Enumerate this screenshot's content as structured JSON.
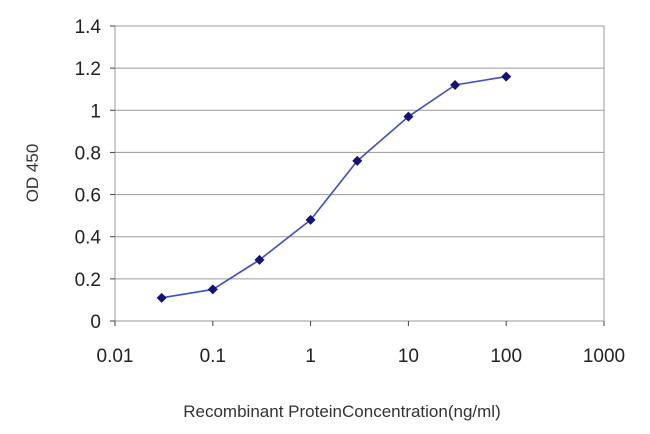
{
  "chart_data": {
    "type": "line",
    "xscale": "log",
    "xlabel": "Recombinant ProteinConcentration(ng/ml)",
    "ylabel": "OD 450",
    "xlim": [
      0.01,
      1000
    ],
    "ylim": [
      0,
      1.4
    ],
    "x_ticks": [
      "0.01",
      "0.1",
      "1",
      "10",
      "100",
      "1000"
    ],
    "y_ticks": [
      "0",
      "0.2",
      "0.4",
      "0.6",
      "0.8",
      "1",
      "1.2",
      "1.4"
    ],
    "grid": true,
    "legend": "none",
    "series": [
      {
        "color": "#3b4fc8",
        "marker_color": "#13137a",
        "points": [
          {
            "x": 0.03,
            "y": 0.11
          },
          {
            "x": 0.1,
            "y": 0.15
          },
          {
            "x": 0.3,
            "y": 0.29
          },
          {
            "x": 1,
            "y": 0.48
          },
          {
            "x": 3,
            "y": 0.76
          },
          {
            "x": 10,
            "y": 0.97
          },
          {
            "x": 30,
            "y": 1.12
          },
          {
            "x": 100,
            "y": 1.16
          }
        ]
      }
    ]
  }
}
